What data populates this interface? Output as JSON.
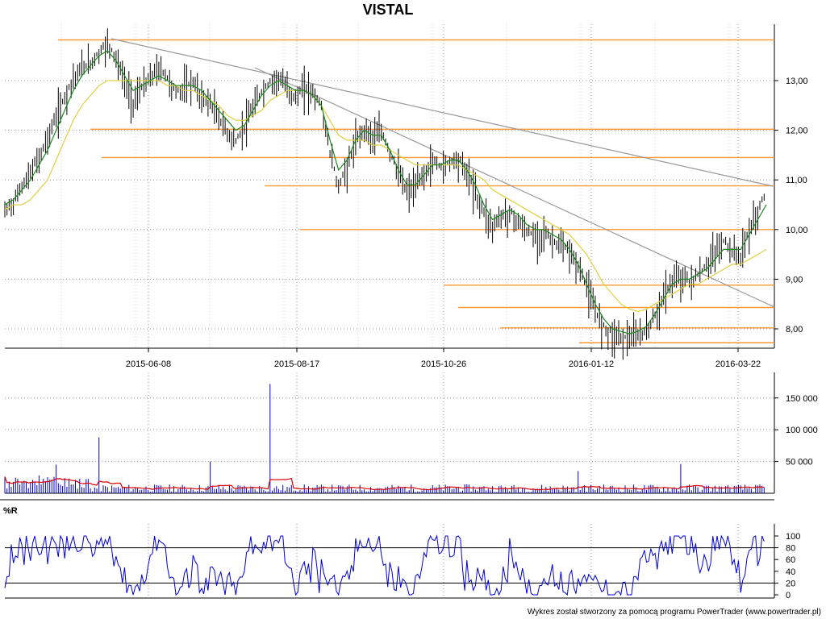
{
  "chart_data": {
    "type": "candlestick",
    "title": "VISTAL",
    "footer": "Wykres został stworzony za pomocą programu PowerTrader (www.powertrader.pl)",
    "date_ticks": [
      "2015-06-08",
      "2015-08-17",
      "2015-10-26",
      "2016-01-12",
      "2016-03-22"
    ],
    "price_panel": {
      "ylim": [
        7.7,
        13.9
      ],
      "yticks": [
        8.0,
        9.0,
        10.0,
        11.0,
        12.0,
        13.0
      ],
      "ytick_labels": [
        "8,00",
        "9,00",
        "10,00",
        "11,00",
        "12,00",
        "13,00"
      ],
      "close_series": [
        10.4,
        10.6,
        10.9,
        11.2,
        11.5,
        11.9,
        12.3,
        12.7,
        13.1,
        13.3,
        13.4,
        13.6,
        13.8,
        13.5,
        13.0,
        12.6,
        12.9,
        13.1,
        13.3,
        13.1,
        12.8,
        12.9,
        13.0,
        12.7,
        12.6,
        12.3,
        12.0,
        11.8,
        12.1,
        12.5,
        12.8,
        13.0,
        13.1,
        12.9,
        12.7,
        12.9,
        12.8,
        12.5,
        11.6,
        10.9,
        11.3,
        11.8,
        12.1,
        11.9,
        12.0,
        11.6,
        11.2,
        10.8,
        10.9,
        11.2,
        11.4,
        11.3,
        11.4,
        11.5,
        11.2,
        10.8,
        10.4,
        10.1,
        10.3,
        10.4,
        10.2,
        10.0,
        9.9,
        10.0,
        9.8,
        9.7,
        9.6,
        9.3,
        8.9,
        8.4,
        8.1,
        7.95,
        7.9,
        7.85,
        7.9,
        8.0,
        8.3,
        8.7,
        9.0,
        9.1,
        9.0,
        9.1,
        9.3,
        9.6,
        9.8,
        9.6,
        9.5,
        10.0,
        10.4,
        10.8
      ],
      "ma_short": [
        10.5,
        10.6,
        10.8,
        11.0,
        11.3,
        11.6,
        12.0,
        12.4,
        12.8,
        13.1,
        13.3,
        13.5,
        13.6,
        13.4,
        13.1,
        12.8,
        12.9,
        13.0,
        13.1,
        13.0,
        12.9,
        12.9,
        12.9,
        12.8,
        12.6,
        12.4,
        12.2,
        12.0,
        12.1,
        12.4,
        12.7,
        12.9,
        13.0,
        12.9,
        12.8,
        12.8,
        12.7,
        12.5,
        11.8,
        11.2,
        11.4,
        11.8,
        12.0,
        11.9,
        11.9,
        11.6,
        11.2,
        10.9,
        10.9,
        11.1,
        11.3,
        11.3,
        11.4,
        11.4,
        11.2,
        10.9,
        10.5,
        10.2,
        10.3,
        10.4,
        10.3,
        10.1,
        10.0,
        10.0,
        9.9,
        9.8,
        9.6,
        9.3,
        8.9,
        8.5,
        8.2,
        8.0,
        7.95,
        7.9,
        7.95,
        8.05,
        8.3,
        8.6,
        8.9,
        9.0,
        9.0,
        9.1,
        9.2,
        9.4,
        9.6,
        9.6,
        9.6,
        9.9,
        10.2,
        10.5
      ],
      "ma_long": [
        10.4,
        10.5,
        10.5,
        10.6,
        10.8,
        11.0,
        11.4,
        11.8,
        12.2,
        12.5,
        12.7,
        12.9,
        13.0,
        13.0,
        13.0,
        13.0,
        13.0,
        13.0,
        13.0,
        12.9,
        12.9,
        12.8,
        12.8,
        12.7,
        12.6,
        12.5,
        12.3,
        12.2,
        12.2,
        12.3,
        12.4,
        12.6,
        12.7,
        12.8,
        12.8,
        12.8,
        12.7,
        12.5,
        12.2,
        11.9,
        11.8,
        11.8,
        11.8,
        11.7,
        11.7,
        11.6,
        11.5,
        11.4,
        11.3,
        11.3,
        11.3,
        11.3,
        11.3,
        11.3,
        11.2,
        11.1,
        11.0,
        10.8,
        10.7,
        10.6,
        10.5,
        10.4,
        10.3,
        10.2,
        10.1,
        10.0,
        9.9,
        9.7,
        9.5,
        9.2,
        8.9,
        8.7,
        8.5,
        8.4,
        8.35,
        8.4,
        8.5,
        8.6,
        8.7,
        8.8,
        8.9,
        8.9,
        9.0,
        9.1,
        9.2,
        9.3,
        9.3,
        9.4,
        9.5,
        9.6
      ],
      "horizontal_levels": [
        {
          "y": 13.82,
          "x_start_index": 12
        },
        {
          "y": 12.02,
          "x_start_index": 18
        },
        {
          "y": 11.45,
          "x_start_index": 21
        },
        {
          "y": 10.88,
          "x_start_index": 54
        },
        {
          "y": 10.0,
          "x_start_index": 61
        },
        {
          "y": 8.88,
          "x_start_index": 90
        },
        {
          "y": 8.43,
          "x_start_index": 94
        },
        {
          "y": 8.02,
          "x_start_index": 102
        },
        {
          "y": 7.72,
          "x_start_index": 118
        }
      ],
      "trendlines": [
        {
          "from": [
            "2015-05-01",
            13.82
          ],
          "to": [
            "2016-03-24",
            10.88
          ]
        },
        {
          "from": [
            "2015-07-20",
            13.25
          ],
          "to": [
            "2016-03-24",
            8.43
          ]
        }
      ]
    },
    "volume_panel": {
      "ylim": [
        0,
        170000
      ],
      "yticks": [
        50000,
        100000,
        150000
      ],
      "ytick_labels": [
        "50 000",
        "100 000",
        "150 000"
      ],
      "spikes": [
        {
          "index": 11,
          "value": 88000
        },
        {
          "index": 31,
          "value": 172000
        },
        {
          "index": 24,
          "value": 50000
        },
        {
          "index": 6,
          "value": 45000
        },
        {
          "index": 4,
          "value": 28000
        },
        {
          "index": 79,
          "value": 46000
        },
        {
          "index": 67,
          "value": 35000
        }
      ],
      "volume_ma_color": "#dd0000"
    },
    "oscillator_panel": {
      "label": "%R",
      "ylim": [
        0,
        100
      ],
      "yticks": [
        0,
        20,
        40,
        60,
        80,
        100
      ],
      "ytick_labels": [
        "0",
        "20",
        "40",
        "60",
        "80",
        "100"
      ],
      "reference_lines": [
        20,
        80
      ]
    },
    "colors": {
      "candles": "#000000",
      "ma_short": "#1a8a1a",
      "ma_long": "#e0d040",
      "levels": "#ff9933",
      "trendlines": "#999999",
      "volume_bars": "#0000cc",
      "volume_ma": "#dd0000",
      "oscillator": "#0000dd",
      "grid": "#999999"
    }
  }
}
